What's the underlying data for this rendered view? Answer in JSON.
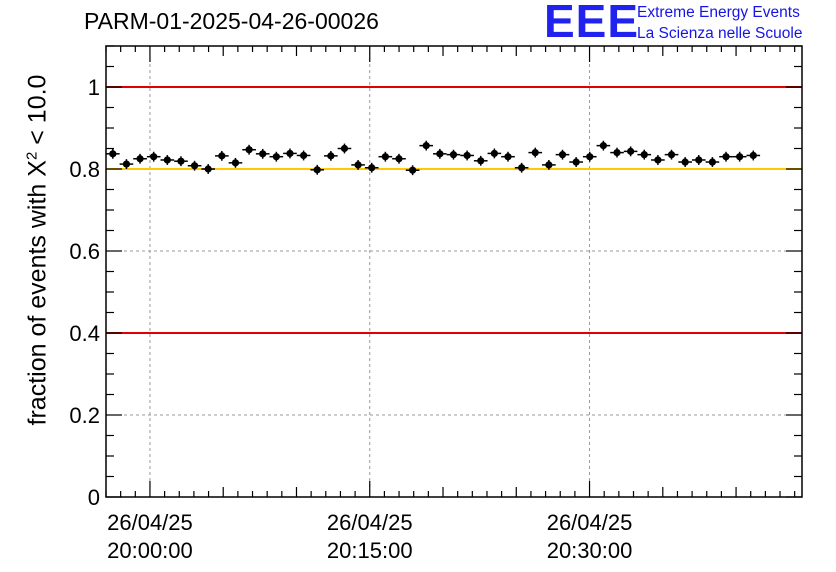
{
  "title": "PARM-01-2025-04-26-00026",
  "logo": {
    "mark": "EEE",
    "line1": "Extreme Energy Events",
    "line2": "La Scienza nelle Scuole"
  },
  "colors": {
    "limit_line": "#e00000",
    "reference_line": "#ffc800",
    "points": "#000000",
    "grid": "#9a9a9a",
    "logo": "#2222ee"
  },
  "chart_data": {
    "type": "scatter",
    "title": "PARM-01-2025-04-26-00026",
    "ylabel_prefix": "fraction of events with ",
    "ylabel_symbol": "X",
    "ylabel_sup": "2",
    "ylabel_suffix": " < 10.0",
    "xlabel": "",
    "ylim": [
      0,
      1.1
    ],
    "xlim_minutes": [
      0,
      47.5
    ],
    "x_unit": "minutes after 2025-04-26 19:57:00",
    "yticks": [
      {
        "value": 0,
        "label": "0"
      },
      {
        "value": 0.2,
        "label": "0.2"
      },
      {
        "value": 0.4,
        "label": "0.4"
      },
      {
        "value": 0.6,
        "label": "0.6"
      },
      {
        "value": 0.8,
        "label": "0.8"
      },
      {
        "value": 1,
        "label": "1"
      }
    ],
    "xticks": [
      {
        "minutes": 3,
        "date": "26/04/25",
        "time": "20:00:00"
      },
      {
        "minutes": 18,
        "date": "26/04/25",
        "time": "20:15:00"
      },
      {
        "minutes": 33,
        "date": "26/04/25",
        "time": "20:30:00"
      }
    ],
    "grid": true,
    "hlines": [
      {
        "y": 1.0,
        "role": "limit"
      },
      {
        "y": 0.8,
        "role": "reference"
      },
      {
        "y": 0.4,
        "role": "limit"
      }
    ],
    "bin_width_minutes": 0.93,
    "y_error": 0.012,
    "values": [
      0.837,
      0.812,
      0.825,
      0.83,
      0.822,
      0.819,
      0.808,
      0.8,
      0.832,
      0.815,
      0.847,
      0.837,
      0.83,
      0.838,
      0.833,
      0.798,
      0.832,
      0.85,
      0.81,
      0.803,
      0.83,
      0.825,
      0.797,
      0.857,
      0.837,
      0.835,
      0.833,
      0.82,
      0.838,
      0.83,
      0.803,
      0.84,
      0.81,
      0.835,
      0.817,
      0.83,
      0.857,
      0.84,
      0.843,
      0.835,
      0.822,
      0.835,
      0.817,
      0.822,
      0.817,
      0.83,
      0.83,
      0.833
    ]
  }
}
